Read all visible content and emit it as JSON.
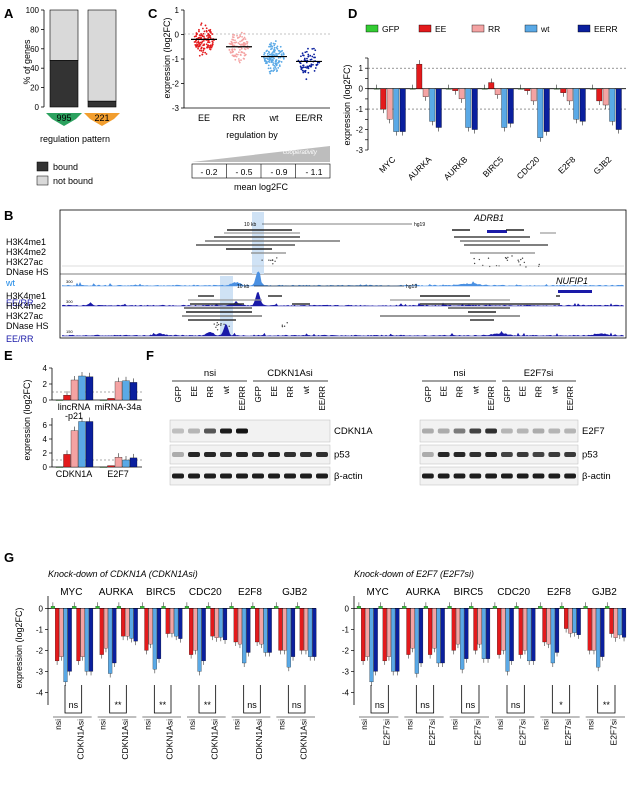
{
  "panels": {
    "A": "A",
    "B": "B",
    "C": "C",
    "D": "D",
    "E": "E",
    "F": "F",
    "G": "G"
  },
  "colors": {
    "GFP": "#33cc33",
    "EE": "#e31a1c",
    "RR": "#f4a3a3",
    "wt": "#5aa9e6",
    "EERR": "#0a1f9e",
    "bound": "#333333",
    "notbound": "#d9d9d9",
    "highlight": "#cfe2f5",
    "track": "#1a1aa8"
  },
  "panelA": {
    "ylabel": "% of genes",
    "xlabel": "regulation pattern",
    "yticks": [
      "0",
      "20",
      "40",
      "60",
      "80",
      "100"
    ],
    "bars": [
      {
        "count": "995",
        "bound_pct": 48,
        "badge_color": "#2ca25f"
      },
      {
        "count": "221",
        "bound_pct": 6,
        "badge_color": "#f29e2e"
      }
    ],
    "legend": {
      "bound": "bound",
      "not_bound": "not bound"
    }
  },
  "panelC": {
    "ylabel": "expression (log2FC)",
    "xlabel": "regulation by",
    "yticks": [
      "1",
      "0",
      "-1",
      "-2",
      "-3"
    ],
    "ymin": -3,
    "ymax": 1,
    "groups": [
      {
        "name": "EE",
        "mean": -0.2,
        "color": "#e31a1c"
      },
      {
        "name": "RR",
        "mean": -0.5,
        "color": "#f4a3a3"
      },
      {
        "name": "wt",
        "mean": -0.9,
        "color": "#5aa9e6"
      },
      {
        "name": "EE/RR",
        "mean": -1.1,
        "color": "#0a1f9e"
      }
    ],
    "cooperativity": "cooperativity",
    "mean_values": [
      "- 0.2",
      "- 0.5",
      "- 0.9",
      "- 1.1"
    ],
    "mean_label": "mean log2FC"
  },
  "panelD": {
    "legend": [
      "GFP",
      "EE",
      "RR",
      "wt",
      "EERR"
    ],
    "ylabel": "expression (log2FC)",
    "yticks": [
      "1.5",
      "1",
      "0.5",
      "0",
      "-0.5",
      "-1",
      "-1.5",
      "-2",
      "-2.5",
      "-3"
    ],
    "ymin": -3,
    "ymax": 1.5,
    "genes": [
      "MYC",
      "AURKA",
      "AURKB",
      "BIRC5",
      "CDC20",
      "E2F8",
      "GJB2"
    ]
  },
  "chart_data": [
    {
      "type": "bar",
      "categories": [
        "MYC",
        "AURKA",
        "AURKB",
        "BIRC5",
        "CDC20",
        "E2F8",
        "GJB2"
      ],
      "series": [
        {
          "name": "GFP",
          "values": [
            0,
            0,
            0,
            0,
            0,
            0,
            0
          ]
        },
        {
          "name": "EE",
          "values": [
            -1.0,
            1.2,
            -0.1,
            0.3,
            -0.1,
            -0.2,
            -0.6
          ]
        },
        {
          "name": "RR",
          "values": [
            -1.5,
            -0.4,
            -0.5,
            -0.3,
            -0.6,
            -0.6,
            -0.8
          ]
        },
        {
          "name": "wt",
          "values": [
            -2.1,
            -1.6,
            -1.9,
            -1.9,
            -2.4,
            -1.5,
            -1.6
          ]
        },
        {
          "name": "EERR",
          "values": [
            -2.1,
            -1.9,
            -2.0,
            -1.7,
            -2.1,
            -1.6,
            -2.0
          ]
        }
      ],
      "ylim": [
        -3,
        1.5
      ]
    }
  ],
  "panelB": {
    "upper": {
      "scale": "10 kb",
      "assembly": "hg19",
      "gene": "ADRB1",
      "tracks": [
        "H3K4me1",
        "H3K4me2",
        "H3K27ac",
        "DNase HS"
      ],
      "wt_label": "wt",
      "wt_scale": "300",
      "eerr_label": "EE/RR",
      "eerr_scale": "300"
    },
    "lower": {
      "scale": "10 kb",
      "assembly": "hg19",
      "gene": "NUFIP1",
      "tracks": [
        "H3K4me1",
        "H3K4me2",
        "H3K27ac",
        "DNase HS"
      ],
      "eerr_label": "EE/RR",
      "eerr_scale": "150"
    }
  },
  "panelE": {
    "ylabel": "expression (log2FC)",
    "top": {
      "yticks": [
        "4",
        "2",
        "0"
      ],
      "genes": [
        "lincRNA -p21",
        "miRNA-34a"
      ],
      "values": [
        [
          0,
          0.6,
          2.5,
          3.0,
          2.9
        ],
        [
          0,
          0.2,
          2.3,
          2.4,
          2.2
        ]
      ],
      "ymax": 4
    },
    "bottom": {
      "yticks": [
        "6",
        "4",
        "2",
        "0"
      ],
      "genes": [
        "CDKN1A",
        "E2F7"
      ],
      "values": [
        [
          0,
          1.8,
          5.2,
          6.5,
          6.5
        ],
        [
          0,
          0.2,
          1.4,
          1.0,
          1.3
        ]
      ],
      "ymax": 7
    }
  },
  "panelF": {
    "left": {
      "groups": [
        "nsi",
        "CDKN1Asi"
      ],
      "lanes": [
        "GFP",
        "EE",
        "RR",
        "wt",
        "EE/RR",
        "GFP",
        "EE",
        "RR",
        "wt",
        "EE/RR"
      ],
      "blots": [
        "CDKN1A",
        "p53",
        "β-actin"
      ]
    },
    "right": {
      "groups": [
        "nsi",
        "E2F7si"
      ],
      "lanes": [
        "GFP",
        "EE",
        "RR",
        "wt",
        "EE/RR",
        "GFP",
        "EE",
        "RR",
        "wt",
        "EE/RR"
      ],
      "blots": [
        "E2F7",
        "p53",
        "β-actin"
      ]
    }
  },
  "panelG": {
    "ylabel": "expression (log2FC)",
    "yticks": [
      "0",
      "-1",
      "-2",
      "-3",
      "-4"
    ],
    "left": {
      "title": "Knock-down of CDKN1A (CDKN1Asi)",
      "genes": [
        "MYC",
        "AURKA",
        "BIRC5",
        "CDC20",
        "E2F8",
        "GJB2"
      ],
      "sig": [
        "ns",
        "**",
        "**",
        "**",
        "ns",
        "ns"
      ],
      "pair": [
        "nsi",
        "CDKN1Asi"
      ]
    },
    "right": {
      "title": "Knock-down of E2F7 (E2F7si)",
      "genes": [
        "MYC",
        "AURKA",
        "BIRC5",
        "CDC20",
        "E2F8",
        "GJB2"
      ],
      "sig": [
        "ns",
        "ns",
        "ns",
        "ns",
        "*",
        "**"
      ],
      "pair": [
        "nsi",
        "E2F7si"
      ]
    }
  }
}
